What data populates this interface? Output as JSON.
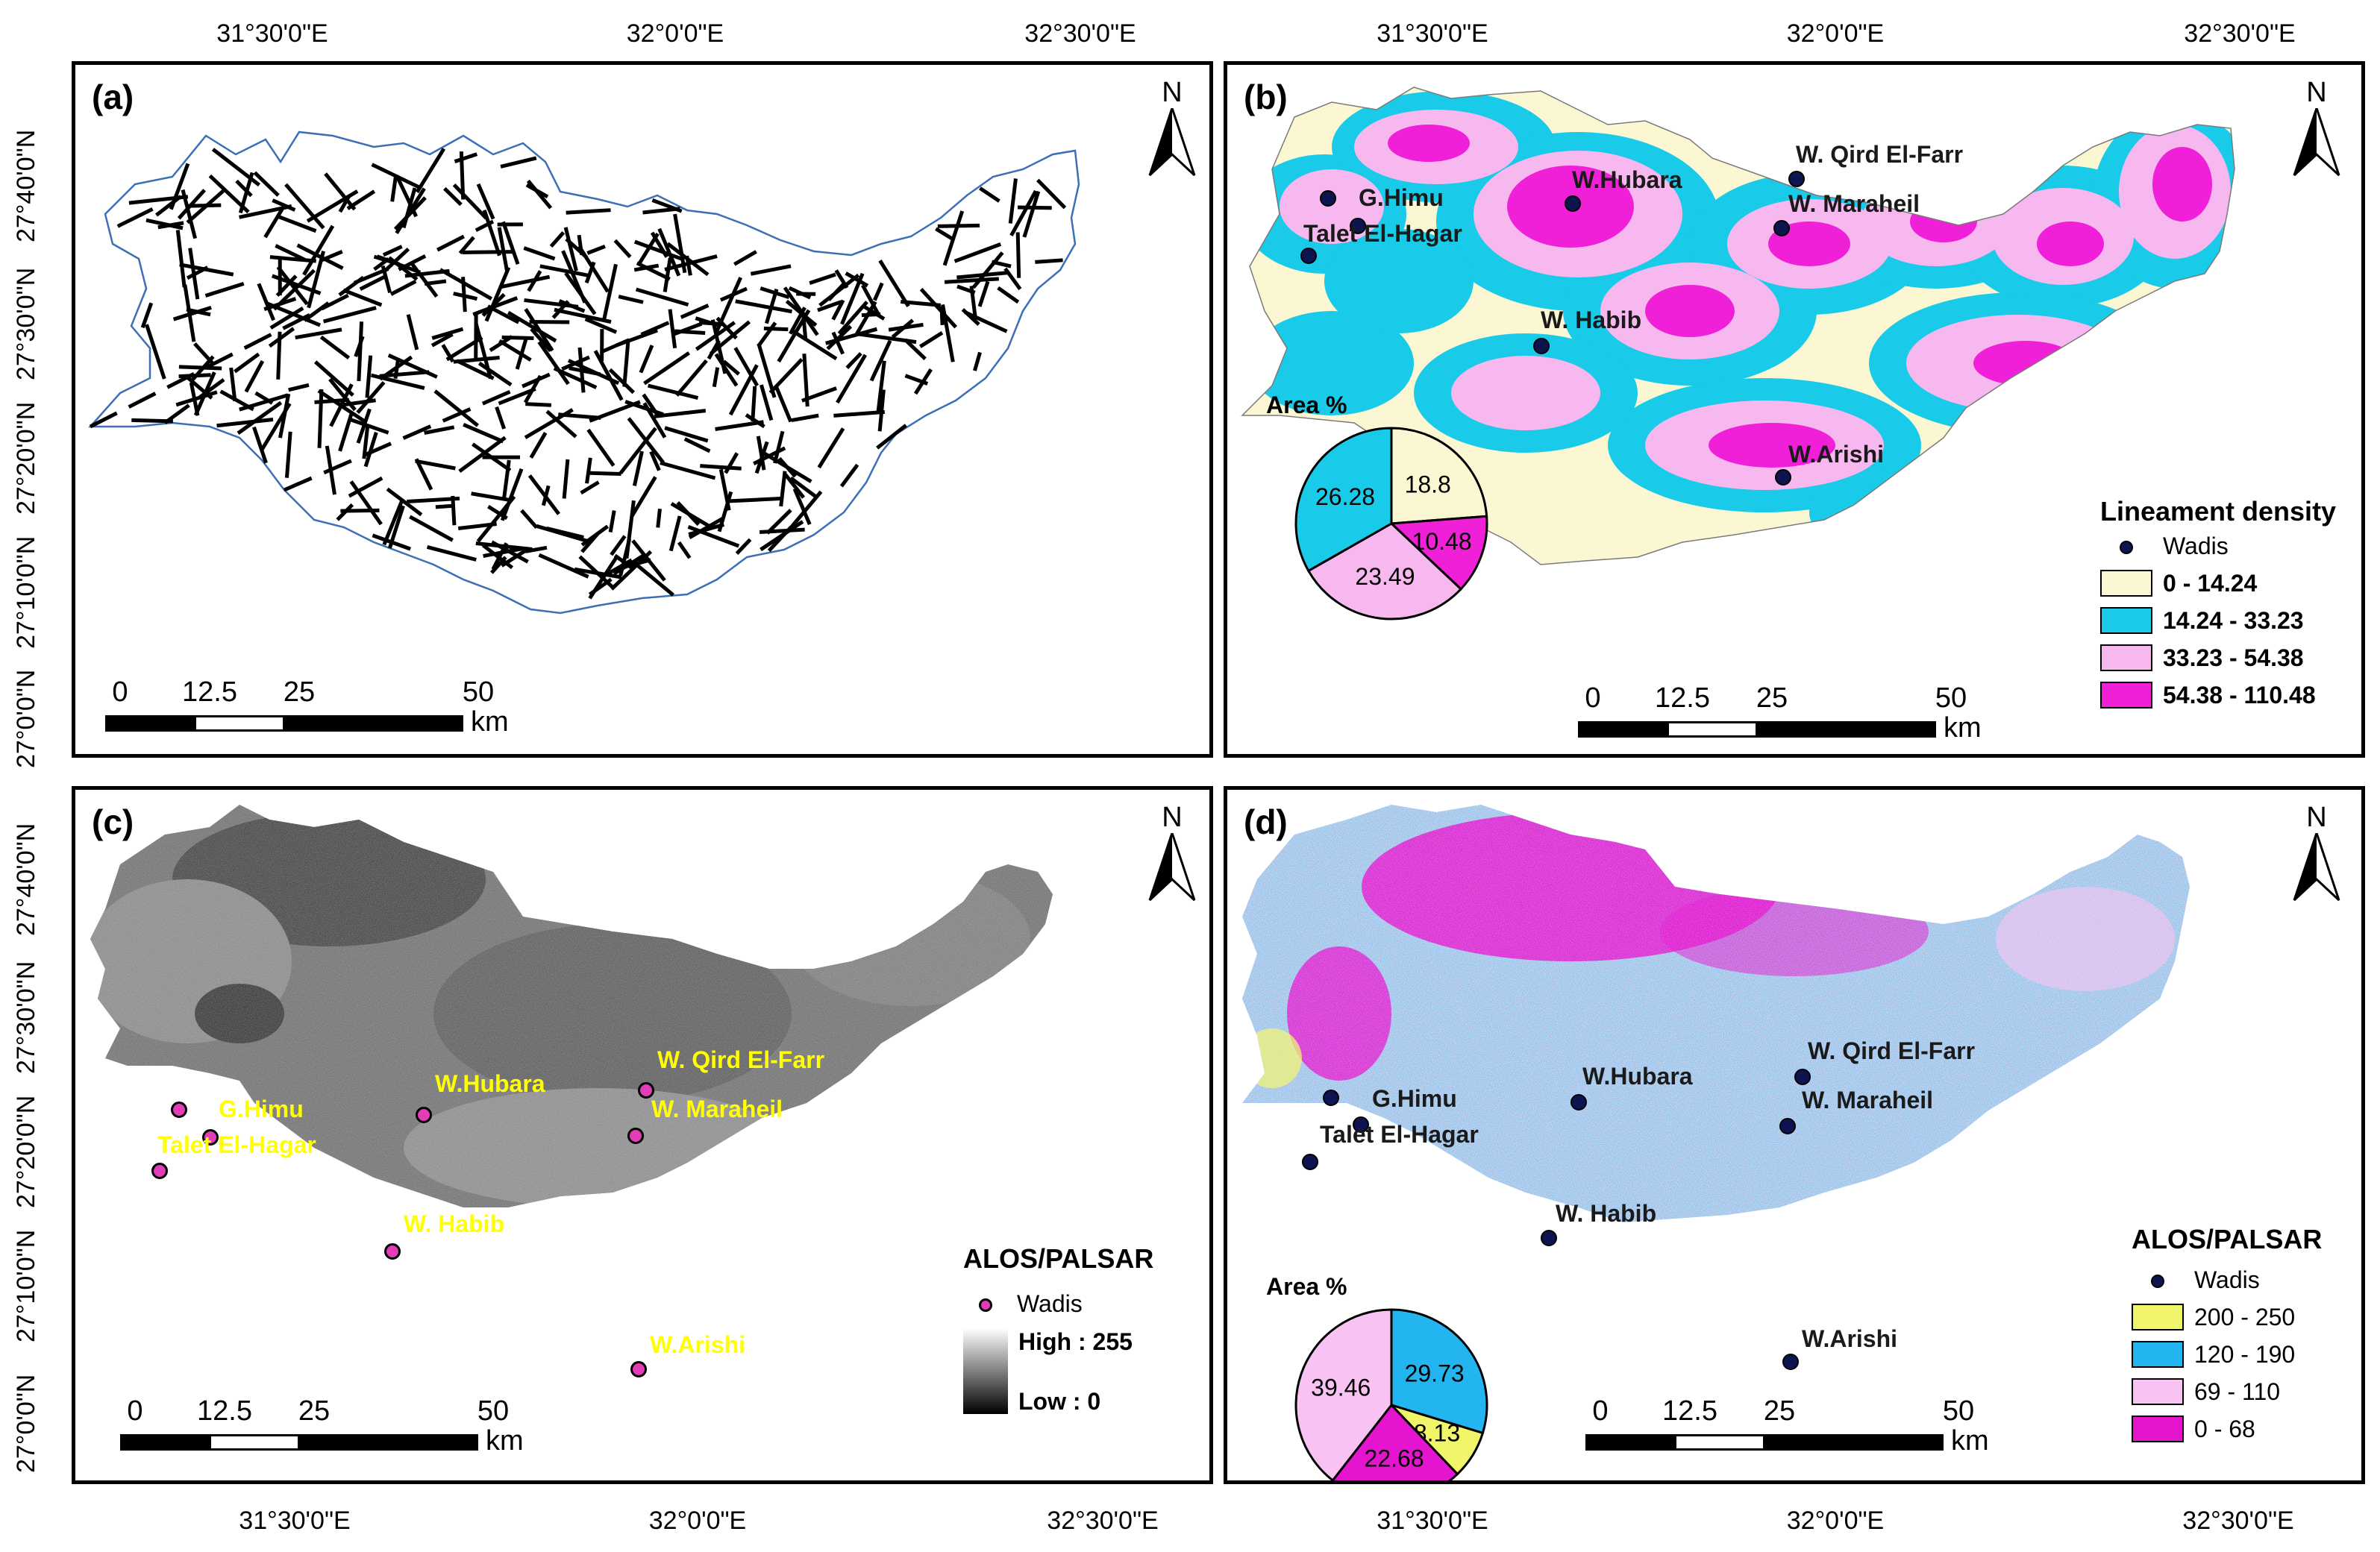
{
  "axes": {
    "lon_labels": [
      "31°30'0\"E",
      "32°0'0\"E",
      "32°30'0\"E"
    ],
    "lat_labels": [
      "27°40'0\"N",
      "27°30'0\"N",
      "27°20'0\"N",
      "27°10'0\"N",
      "27°0'0\"N"
    ]
  },
  "north_letter": "N",
  "scale": {
    "ticks": [
      "0",
      "12.5",
      "25",
      "50"
    ],
    "unit": "km"
  },
  "panels": {
    "a": {
      "label": "(a)"
    },
    "b": {
      "label": "(b)",
      "places": [
        {
          "name": "G.Himu"
        },
        {
          "name": "Talet El-Hagar"
        },
        {
          "name": "W.Hubara"
        },
        {
          "name": "W. Qird El-Farr"
        },
        {
          "name": "W. Maraheil"
        },
        {
          "name": "W. Habib"
        },
        {
          "name": "W.Arishi"
        }
      ],
      "legend_title": "Lineament density",
      "legend_wadis": "Wadis",
      "legend_classes": [
        {
          "label": "0 - 14.24",
          "color": "#fbf7d3"
        },
        {
          "label": "14.24 - 33.23",
          "color": "#19cbe8"
        },
        {
          "label": "33.23 - 54.38",
          "color": "#f7b8f0"
        },
        {
          "label": "54.38 - 110.48",
          "color": "#f020d8"
        }
      ],
      "pie_title": "Area %",
      "pie": [
        {
          "label": "18.8",
          "value": 18.8,
          "color": "#fbf7d3"
        },
        {
          "label": "10.48",
          "value": 10.48,
          "color": "#f020d8"
        },
        {
          "label": "23.49",
          "value": 23.49,
          "color": "#f7b8f0"
        },
        {
          "label": "26.28",
          "value": 26.28,
          "color": "#19cbe8"
        }
      ]
    },
    "c": {
      "label": "(c)",
      "places": [
        {
          "name": "G.Himu"
        },
        {
          "name": "Talet El-Hagar"
        },
        {
          "name": "W.Hubara"
        },
        {
          "name": "W. Qird El-Farr"
        },
        {
          "name": "W. Maraheil"
        },
        {
          "name": "W. Habib"
        },
        {
          "name": "W.Arishi"
        }
      ],
      "legend_title": "ALOS/PALSAR",
      "legend_wadis": "Wadis",
      "ramp_high": "High : 255",
      "ramp_low": "Low : 0"
    },
    "d": {
      "label": "(d)",
      "places": [
        {
          "name": "G.Himu"
        },
        {
          "name": "Talet El-Hagar"
        },
        {
          "name": "W.Hubara"
        },
        {
          "name": "W. Qird El-Farr"
        },
        {
          "name": "W. Maraheil"
        },
        {
          "name": "W. Habib"
        },
        {
          "name": "W.Arishi"
        }
      ],
      "legend_title": "ALOS/PALSAR",
      "legend_wadis": "Wadis",
      "legend_classes": [
        {
          "label": "200 - 250",
          "color": "#f1f56a"
        },
        {
          "label": "120 - 190",
          "color": "#22b5f0"
        },
        {
          "label": "69 - 110",
          "color": "#f8c2f2"
        },
        {
          "label": "0 - 68",
          "color": "#e414cf"
        }
      ],
      "pie_title": "Area %",
      "pie": [
        {
          "label": "29.73",
          "value": 29.73,
          "color": "#22b5f0"
        },
        {
          "label": "8.13",
          "value": 8.13,
          "color": "#f1f56a"
        },
        {
          "label": "22.68",
          "value": 22.68,
          "color": "#e414cf"
        },
        {
          "label": "39.46",
          "value": 39.46,
          "color": "#f8c2f2"
        }
      ]
    }
  }
}
